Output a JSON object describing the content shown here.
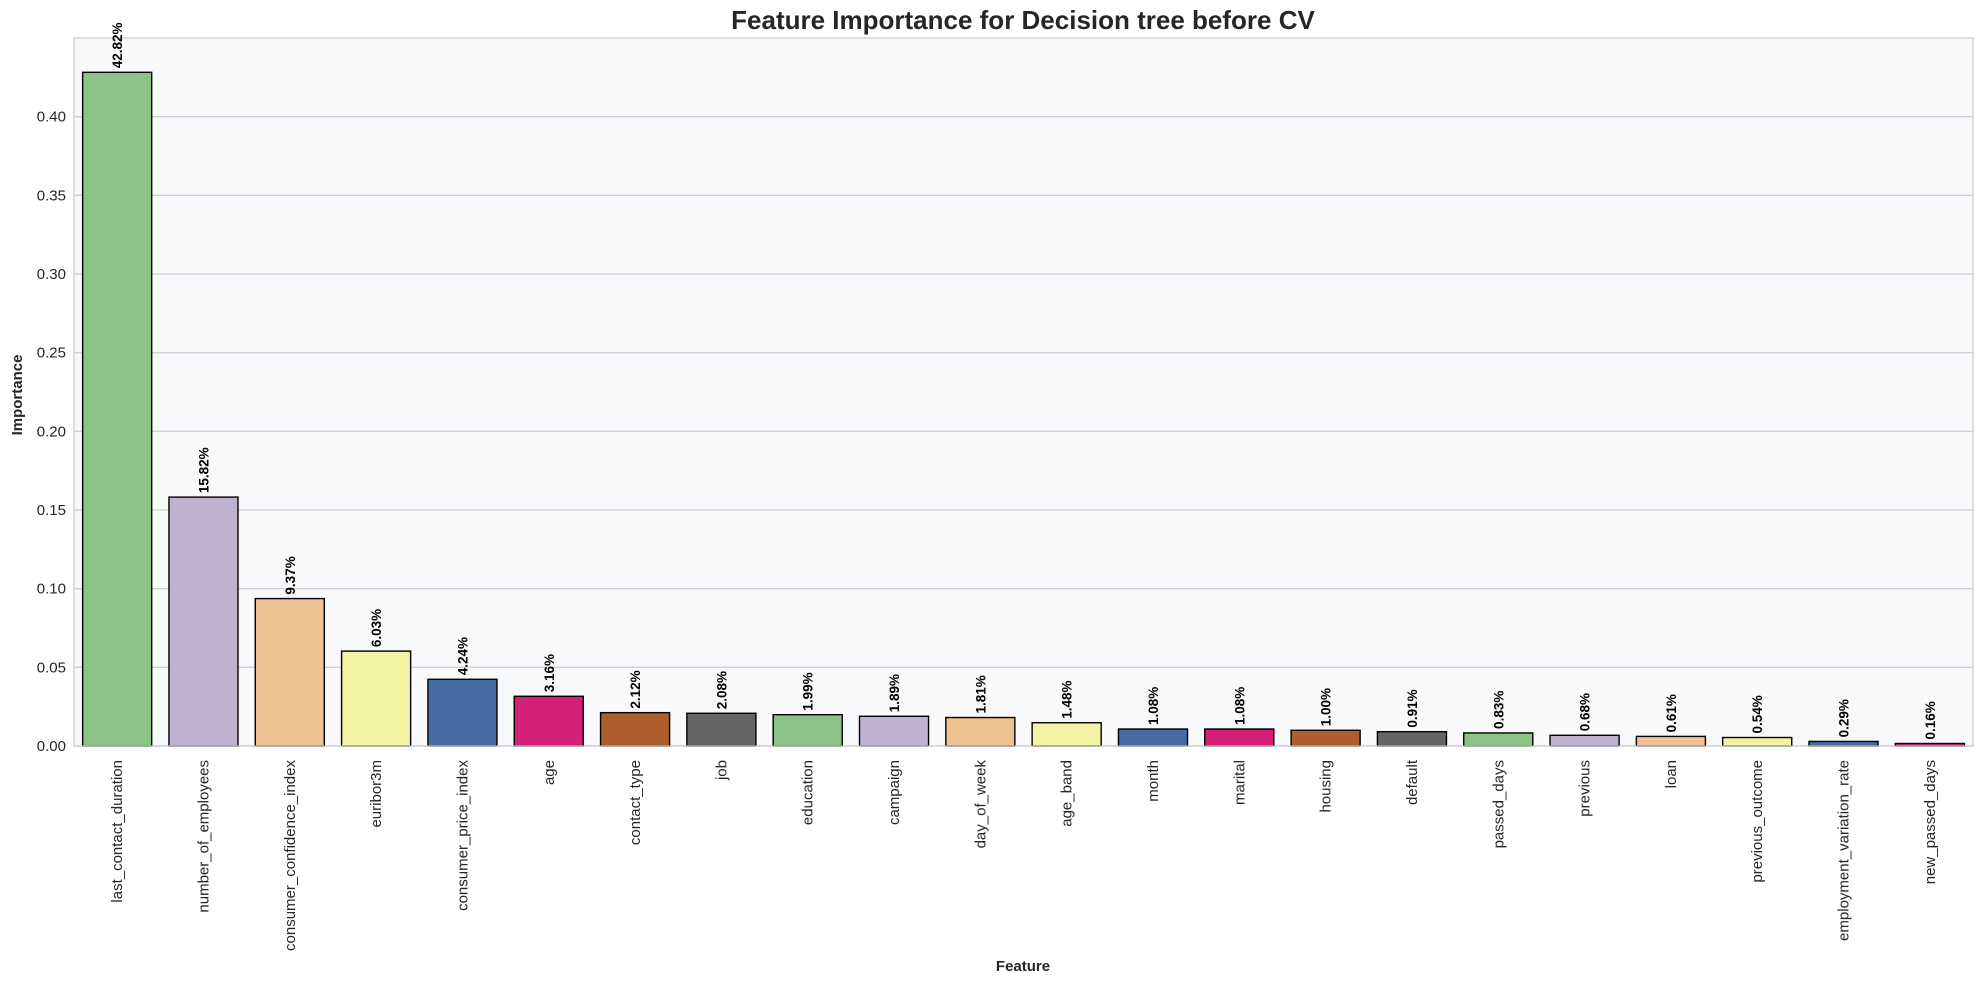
{
  "chart_data": {
    "type": "bar",
    "title": "Feature Importance for Decision tree before CV",
    "xlabel": "Feature",
    "ylabel": "Importance",
    "ylim": [
      0,
      0.45
    ],
    "yticks": [
      0.0,
      0.05,
      0.1,
      0.15,
      0.2,
      0.25,
      0.3,
      0.35,
      0.4
    ],
    "ytick_labels": [
      "0.00",
      "0.05",
      "0.10",
      "0.15",
      "0.20",
      "0.25",
      "0.30",
      "0.35",
      "0.40"
    ],
    "grid": true,
    "categories": [
      "last_contact_duration",
      "number_of_employees",
      "consumer_confidence_index",
      "euribor3m",
      "consumer_price_index",
      "age",
      "contact_type",
      "job",
      "education",
      "campaign",
      "day_of_week",
      "age_band",
      "month",
      "marital",
      "housing",
      "default",
      "passed_days",
      "previous",
      "loan",
      "previous_outcome",
      "employment_variation_rate",
      "new_passed_days"
    ],
    "values": [
      0.4282,
      0.1582,
      0.0937,
      0.0603,
      0.0424,
      0.0316,
      0.0212,
      0.0208,
      0.0199,
      0.0189,
      0.0181,
      0.0148,
      0.0108,
      0.0108,
      0.01,
      0.0091,
      0.0083,
      0.0068,
      0.0061,
      0.0054,
      0.0029,
      0.0016
    ],
    "data_labels": [
      "42.82%",
      "15.82%",
      "9.37%",
      "6.03%",
      "4.24%",
      "3.16%",
      "2.12%",
      "2.08%",
      "1.99%",
      "1.89%",
      "1.81%",
      "1.48%",
      "1.08%",
      "1.08%",
      "1.00%",
      "0.91%",
      "0.83%",
      "0.68%",
      "0.61%",
      "0.54%",
      "0.29%",
      "0.16%"
    ],
    "colors": [
      "#8bc387",
      "#bfb2d1",
      "#eec193",
      "#f3f4a3",
      "#456da3",
      "#d42177",
      "#ad5e2a",
      "#656565",
      "#8bc387",
      "#bfb2d1",
      "#eec193",
      "#f3f4a3",
      "#456da3",
      "#d42177",
      "#ad5e2a",
      "#656565",
      "#8bc387",
      "#bfb2d1",
      "#eec193",
      "#f3f4a3",
      "#456da3",
      "#d42177"
    ],
    "plot_background": "#f8f9fb",
    "grid_color": "#cfd1d6",
    "bar_edge_color": "#000000"
  }
}
